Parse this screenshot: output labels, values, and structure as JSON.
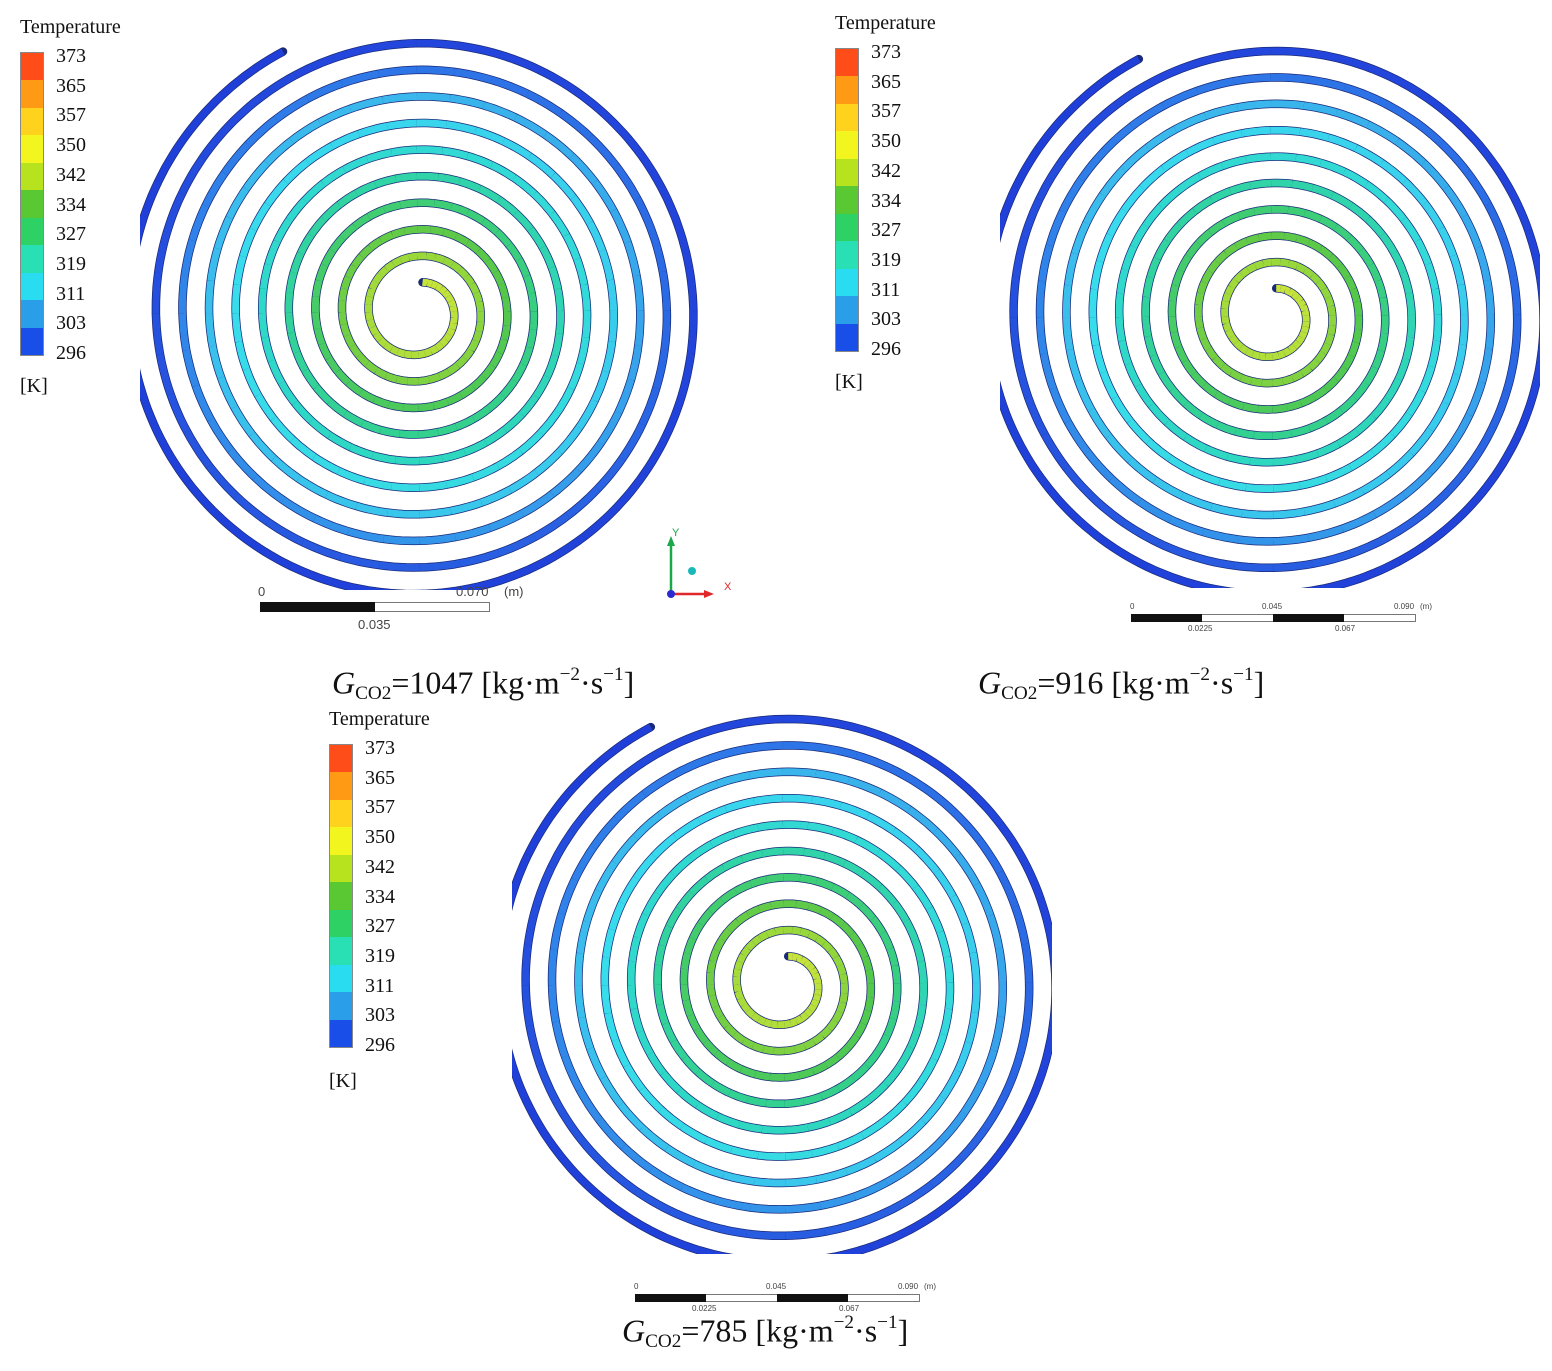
{
  "legend": {
    "title": "Temperature",
    "ticks": [
      "373",
      "365",
      "357",
      "350",
      "342",
      "334",
      "327",
      "319",
      "311",
      "303",
      "296"
    ],
    "unit": "[K]",
    "colors": [
      "#ff4d1a",
      "#ff9a14",
      "#ffd21e",
      "#f2f51e",
      "#b6e21e",
      "#5ac832",
      "#2ed264",
      "#28e0b4",
      "#2adcf0",
      "#2a9ee8",
      "#1a4ee8"
    ]
  },
  "panels": [
    {
      "caption": {
        "symbol": "G",
        "subscript": "CO2",
        "value": "=1047",
        "unit_pre": " [kg·m",
        "exp1": "−2",
        "unit_mid": "·s",
        "exp2": "−1",
        "unit_post": "]"
      },
      "scale": {
        "left": "0",
        "right": "0.070",
        "unit": "(m)",
        "mid": "0.035"
      },
      "axes": {
        "y": "Y",
        "x": "X"
      }
    },
    {
      "caption": {
        "symbol": "G",
        "subscript": "CO2",
        "value": "=916",
        "unit_pre": " [kg·m",
        "exp1": "−2",
        "unit_mid": "·s",
        "exp2": "−1",
        "unit_post": "]"
      },
      "scale": {
        "t0": "0",
        "t1": "0.045",
        "t2": "0.090",
        "unit": "(m)",
        "b1": "0.0225",
        "b2": "0.067"
      }
    },
    {
      "caption": {
        "symbol": "G",
        "subscript": "CO2",
        "value": "=785",
        "unit_pre": " [kg·m",
        "exp1": "−2",
        "unit_mid": "·s",
        "exp2": "−1",
        "unit_post": "]"
      },
      "scale": {
        "t0": "0",
        "t1": "0.045",
        "t2": "0.090",
        "unit": "(m)",
        "b1": "0.0225",
        "b2": "0.067"
      }
    }
  ],
  "spiral_colors": {
    "outer": "#1f3fd8",
    "inner": "#b8e03a"
  }
}
